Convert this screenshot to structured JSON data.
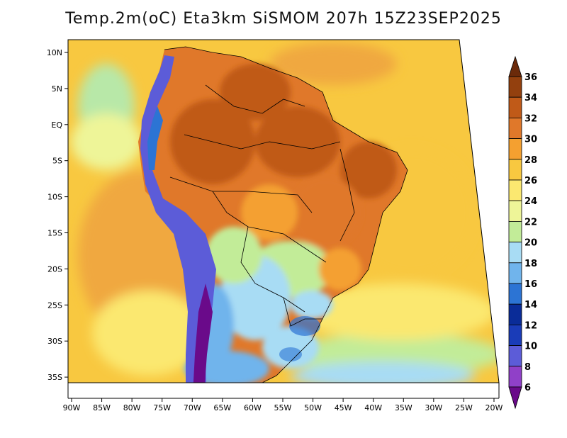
{
  "title": "Temp.2m(oC) Eta3km SiSMOM 207h 15Z23SEP2025",
  "lat_labels": [
    "10N",
    "5N",
    "EQ",
    "5S",
    "10S",
    "15S",
    "20S",
    "25S",
    "30S",
    "35S"
  ],
  "lon_labels": [
    "90W",
    "85W",
    "80W",
    "75W",
    "70W",
    "65W",
    "60W",
    "55W",
    "50W",
    "45W",
    "40W",
    "35W",
    "30W",
    "25W",
    "20W"
  ],
  "colorbar": {
    "labels": [
      "36",
      "34",
      "32",
      "30",
      "28",
      "26",
      "24",
      "22",
      "20",
      "18",
      "16",
      "14",
      "12",
      "10",
      "8",
      "6"
    ],
    "colors": [
      "#6b2a0a",
      "#93400e",
      "#c05a18",
      "#e0782a",
      "#f4a030",
      "#f8c840",
      "#fbe870",
      "#eef598",
      "#c2ec98",
      "#a8dcf4",
      "#70b4ec",
      "#2c74d4",
      "#0a2c98",
      "#1a3cb8",
      "#5c5cd8",
      "#9040c8",
      "#6a0a8a"
    ]
  }
}
